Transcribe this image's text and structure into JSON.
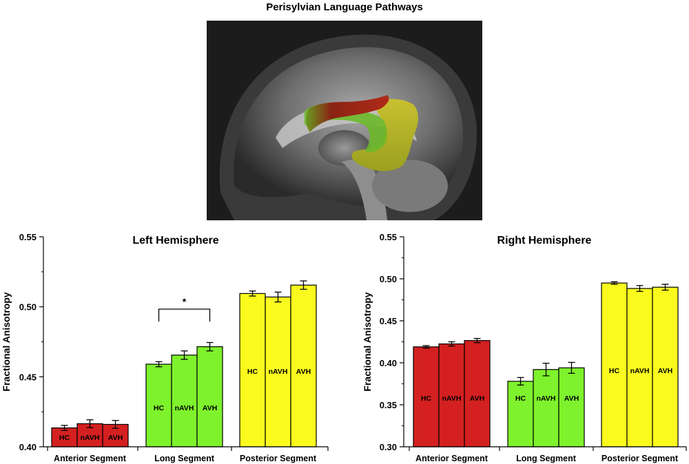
{
  "figure_title": "Perisylvian Language Pathways",
  "colors": {
    "anterior": "#d42020",
    "long": "#7ef22c",
    "posterior": "#fafa1e",
    "edge": "#000000"
  },
  "chart_data": [
    {
      "type": "bar",
      "title": "Left Hemisphere",
      "ylabel": "Fractional Anisotropy",
      "ylim": [
        0.4,
        0.55
      ],
      "yticks": [
        "0.40",
        "0.45",
        "0.50",
        "0.55"
      ],
      "categories": [
        "Anterior Segment",
        "Long Segment",
        "Posterior Segment"
      ],
      "bar_labels": [
        "HC",
        "nAVH",
        "AVH"
      ],
      "groups": [
        {
          "category": "Anterior Segment",
          "values": [
            0.4135,
            0.4165,
            0.416
          ],
          "errors": [
            0.0018,
            0.0028,
            0.0028
          ]
        },
        {
          "category": "Long Segment",
          "values": [
            0.459,
            0.4655,
            0.4715
          ],
          "errors": [
            0.0018,
            0.003,
            0.003
          ]
        },
        {
          "category": "Posterior Segment",
          "values": [
            0.5095,
            0.507,
            0.5155
          ],
          "errors": [
            0.0018,
            0.0035,
            0.003
          ]
        }
      ],
      "annotations": [
        {
          "text": "*",
          "group": 1,
          "from_bar": 0,
          "to_bar": 2
        }
      ]
    },
    {
      "type": "bar",
      "title": "Right Hemisphere",
      "ylabel": "Fractional Anisotropy",
      "ylim": [
        0.3,
        0.55
      ],
      "yticks": [
        "0.30",
        "0.35",
        "0.40",
        "0.45",
        "0.50",
        "0.55"
      ],
      "categories": [
        "Anterior Segment",
        "Long Segment",
        "Posterior Segment"
      ],
      "bar_labels": [
        "HC",
        "nAVH",
        "AVH"
      ],
      "groups": [
        {
          "category": "Anterior Segment",
          "values": [
            0.419,
            0.4225,
            0.4265
          ],
          "errors": [
            0.0015,
            0.0025,
            0.0025
          ]
        },
        {
          "category": "Long Segment",
          "values": [
            0.378,
            0.392,
            0.394
          ],
          "errors": [
            0.0045,
            0.0075,
            0.0065
          ]
        },
        {
          "category": "Posterior Segment",
          "values": [
            0.495,
            0.4885,
            0.49
          ],
          "errors": [
            0.0015,
            0.0035,
            0.0035
          ]
        }
      ],
      "annotations": []
    }
  ]
}
